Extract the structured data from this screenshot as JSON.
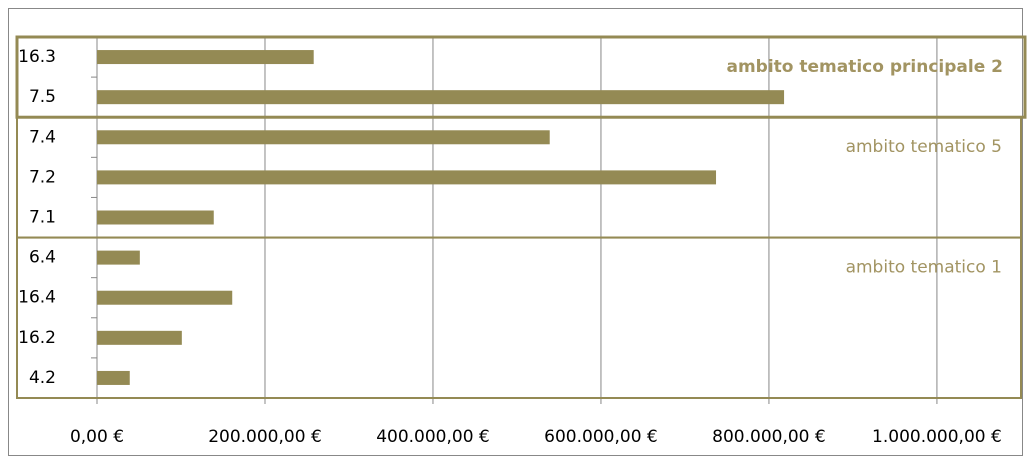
{
  "chart_data": {
    "type": "bar",
    "orientation": "horizontal",
    "categories": [
      "16.3",
      "7.5",
      "7.4",
      "7.2",
      "7.1",
      "6.4",
      "16.4",
      "16.2",
      "4.2"
    ],
    "values": [
      258000,
      818000,
      539000,
      737000,
      139000,
      51000,
      161000,
      101000,
      39000
    ],
    "color": "#948a54",
    "xlim": [
      0,
      1087000
    ],
    "xticks": [
      {
        "value": 0,
        "label": "0,00 €"
      },
      {
        "value": 200000,
        "label": "200.000,00 €"
      },
      {
        "value": 400000,
        "label": "400.000,00 €"
      },
      {
        "value": 600000,
        "label": "600.000,00 €"
      },
      {
        "value": 800000,
        "label": "800.000,00 €"
      },
      {
        "value": 1000000,
        "label": "1.000.000,00 €"
      }
    ],
    "grid": true,
    "annotations": [
      "ambito tematico principale 2",
      "ambito tematico 5",
      "ambito tematico 1"
    ]
  }
}
